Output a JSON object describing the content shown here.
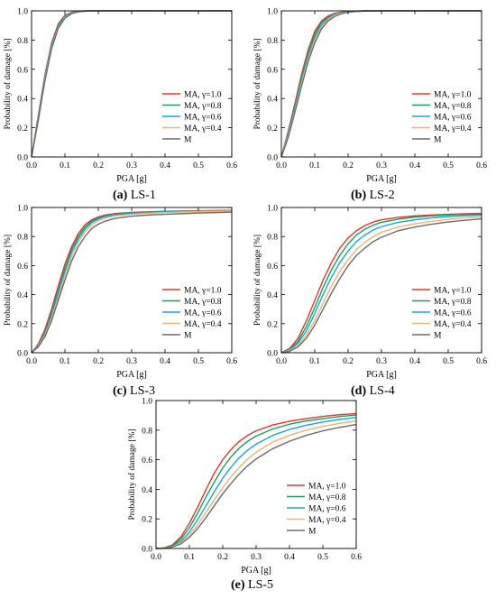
{
  "series_colors": {
    "MA, γ=1.0": "#e3342f",
    "MA, γ=0.8": "#1a9e5a",
    "MA, γ=0.6": "#1aa3d6",
    "MA, γ=0.4": "#f3b173",
    "M": "#6b6b6b"
  },
  "chart_data": [
    {
      "type": "line",
      "caption_letter": "(a)",
      "caption_text": "LS-1",
      "xlabel": "PGA [g]",
      "ylabel": "Probability of damage [%]",
      "xlim": [
        0.0,
        0.6
      ],
      "ylim": [
        0.0,
        1.0
      ],
      "xticks": [
        "0.0",
        "0.1",
        "0.2",
        "0.3",
        "0.4",
        "0.5",
        "0.6"
      ],
      "yticks": [
        "0.0",
        "0.2",
        "0.4",
        "0.6",
        "0.8",
        "1.0"
      ],
      "legend_position": "lower-right",
      "grid": false,
      "x": [
        0,
        0.02,
        0.04,
        0.06,
        0.08,
        0.1,
        0.12,
        0.14,
        0.16,
        0.18,
        0.2,
        0.25,
        0.3,
        0.4,
        0.5,
        0.6
      ],
      "series": [
        {
          "name": "MA, γ=1.0",
          "values": [
            0,
            0.28,
            0.56,
            0.78,
            0.91,
            0.97,
            0.99,
            0.997,
            1,
            1,
            1,
            1,
            1,
            1,
            1,
            1
          ]
        },
        {
          "name": "MA, γ=0.8",
          "values": [
            0,
            0.27,
            0.55,
            0.77,
            0.9,
            0.965,
            0.988,
            0.996,
            0.999,
            1,
            1,
            1,
            1,
            1,
            1,
            1
          ]
        },
        {
          "name": "MA, γ=0.6",
          "values": [
            0,
            0.26,
            0.54,
            0.76,
            0.89,
            0.96,
            0.985,
            0.995,
            0.998,
            1,
            1,
            1,
            1,
            1,
            1,
            1
          ]
        },
        {
          "name": "MA, γ=0.4",
          "values": [
            0,
            0.25,
            0.53,
            0.75,
            0.885,
            0.955,
            0.983,
            0.994,
            0.998,
            1,
            1,
            1,
            1,
            1,
            1,
            1
          ]
        },
        {
          "name": "M",
          "values": [
            0,
            0.25,
            0.52,
            0.74,
            0.88,
            0.95,
            0.98,
            0.993,
            0.997,
            1,
            1,
            1,
            1,
            1,
            1,
            1
          ]
        }
      ]
    },
    {
      "type": "line",
      "caption_letter": "(b)",
      "caption_text": "LS-2",
      "xlabel": "PGA [g]",
      "ylabel": "Probability of damage [%]",
      "xlim": [
        0.0,
        0.6
      ],
      "ylim": [
        0.0,
        1.0
      ],
      "xticks": [
        "0.0",
        "0.1",
        "0.2",
        "0.3",
        "0.4",
        "0.5",
        "0.6"
      ],
      "yticks": [
        "0.0",
        "0.2",
        "0.4",
        "0.6",
        "0.8",
        "1.0"
      ],
      "legend_position": "lower-right",
      "grid": false,
      "x": [
        0,
        0.02,
        0.04,
        0.06,
        0.08,
        0.1,
        0.12,
        0.14,
        0.16,
        0.18,
        0.2,
        0.22,
        0.25,
        0.3,
        0.4,
        0.5,
        0.6
      ],
      "series": [
        {
          "name": "MA, γ=1.0",
          "values": [
            0,
            0.17,
            0.36,
            0.56,
            0.73,
            0.86,
            0.93,
            0.965,
            0.983,
            0.992,
            0.996,
            0.998,
            1,
            1,
            1,
            1,
            1
          ]
        },
        {
          "name": "MA, γ=0.8",
          "values": [
            0,
            0.16,
            0.34,
            0.54,
            0.71,
            0.84,
            0.92,
            0.958,
            0.979,
            0.99,
            0.995,
            0.998,
            1,
            1,
            1,
            1,
            1
          ]
        },
        {
          "name": "MA, γ=0.6",
          "values": [
            0,
            0.15,
            0.33,
            0.52,
            0.69,
            0.82,
            0.905,
            0.95,
            0.975,
            0.988,
            0.994,
            0.997,
            0.999,
            1,
            1,
            1,
            1
          ]
        },
        {
          "name": "MA, γ=0.4",
          "values": [
            0,
            0.14,
            0.31,
            0.5,
            0.67,
            0.8,
            0.89,
            0.94,
            0.97,
            0.985,
            0.992,
            0.996,
            0.999,
            1,
            1,
            1,
            1
          ]
        },
        {
          "name": "M",
          "values": [
            0,
            0.13,
            0.3,
            0.48,
            0.65,
            0.78,
            0.875,
            0.93,
            0.962,
            0.98,
            0.99,
            0.995,
            0.998,
            1,
            1,
            1,
            1
          ]
        }
      ]
    },
    {
      "type": "line",
      "caption_letter": "(c)",
      "caption_text": "LS-3",
      "xlabel": "PGA [g]",
      "ylabel": "Probability of damage [%]",
      "xlim": [
        0.0,
        0.6
      ],
      "ylim": [
        0.0,
        1.0
      ],
      "xticks": [
        "0.0",
        "0.1",
        "0.2",
        "0.3",
        "0.4",
        "0.5",
        "0.6"
      ],
      "yticks": [
        "0.0",
        "0.2",
        "0.4",
        "0.6",
        "0.8",
        "1.0"
      ],
      "legend_position": "lower-right",
      "grid": false,
      "x": [
        0,
        0.02,
        0.04,
        0.06,
        0.08,
        0.1,
        0.12,
        0.14,
        0.16,
        0.18,
        0.2,
        0.22,
        0.25,
        0.3,
        0.35,
        0.4,
        0.5,
        0.6
      ],
      "series": [
        {
          "name": "MA, γ=1.0",
          "values": [
            0,
            0.06,
            0.16,
            0.3,
            0.46,
            0.61,
            0.73,
            0.82,
            0.88,
            0.915,
            0.935,
            0.948,
            0.958,
            0.966,
            0.97,
            0.974,
            0.978,
            0.98
          ]
        },
        {
          "name": "MA, γ=0.8",
          "values": [
            0,
            0.055,
            0.14,
            0.28,
            0.43,
            0.58,
            0.71,
            0.8,
            0.865,
            0.905,
            0.928,
            0.942,
            0.954,
            0.963,
            0.968,
            0.972,
            0.976,
            0.978
          ]
        },
        {
          "name": "MA, γ=0.6",
          "values": [
            0,
            0.05,
            0.13,
            0.26,
            0.41,
            0.56,
            0.69,
            0.78,
            0.85,
            0.895,
            0.92,
            0.937,
            0.95,
            0.96,
            0.966,
            0.97,
            0.975,
            0.978
          ]
        },
        {
          "name": "MA, γ=0.4",
          "values": [
            0,
            0.045,
            0.12,
            0.24,
            0.38,
            0.53,
            0.66,
            0.76,
            0.83,
            0.88,
            0.908,
            0.926,
            0.942,
            0.953,
            0.96,
            0.965,
            0.972,
            0.976
          ]
        },
        {
          "name": "M",
          "values": [
            0,
            0.04,
            0.11,
            0.22,
            0.36,
            0.5,
            0.63,
            0.73,
            0.8,
            0.855,
            0.885,
            0.905,
            0.925,
            0.94,
            0.948,
            0.953,
            0.962,
            0.968
          ]
        }
      ]
    },
    {
      "type": "line",
      "caption_letter": "(d)",
      "caption_text": "LS-4",
      "xlabel": "PGA [g]",
      "ylabel": "Probability of damage [%]",
      "xlim": [
        0.0,
        0.6
      ],
      "ylim": [
        0.0,
        1.0
      ],
      "xticks": [
        "0.0",
        "0.1",
        "0.2",
        "0.3",
        "0.4",
        "0.5",
        "0.6"
      ],
      "yticks": [
        "0.0",
        "0.2",
        "0.4",
        "0.6",
        "0.8",
        "1.0"
      ],
      "legend_position": "lower-right",
      "grid": false,
      "x": [
        0,
        0.025,
        0.05,
        0.075,
        0.1,
        0.125,
        0.15,
        0.175,
        0.2,
        0.225,
        0.25,
        0.275,
        0.3,
        0.35,
        0.4,
        0.45,
        0.5,
        0.55,
        0.6
      ],
      "series": [
        {
          "name": "MA, γ=1.0",
          "values": [
            0,
            0.03,
            0.1,
            0.22,
            0.36,
            0.5,
            0.62,
            0.72,
            0.79,
            0.84,
            0.875,
            0.9,
            0.915,
            0.932,
            0.942,
            0.948,
            0.953,
            0.957,
            0.96
          ]
        },
        {
          "name": "MA, γ=0.8",
          "values": [
            0,
            0.025,
            0.08,
            0.18,
            0.31,
            0.45,
            0.57,
            0.67,
            0.75,
            0.81,
            0.85,
            0.878,
            0.898,
            0.92,
            0.934,
            0.942,
            0.948,
            0.952,
            0.955
          ]
        },
        {
          "name": "MA, γ=0.6",
          "values": [
            0,
            0.02,
            0.065,
            0.15,
            0.27,
            0.4,
            0.52,
            0.62,
            0.7,
            0.765,
            0.81,
            0.845,
            0.868,
            0.898,
            0.915,
            0.928,
            0.937,
            0.943,
            0.948
          ]
        },
        {
          "name": "MA, γ=0.4",
          "values": [
            0,
            0.015,
            0.05,
            0.12,
            0.22,
            0.34,
            0.46,
            0.56,
            0.64,
            0.71,
            0.76,
            0.8,
            0.83,
            0.865,
            0.888,
            0.905,
            0.918,
            0.928,
            0.935
          ]
        },
        {
          "name": "M",
          "values": [
            0,
            0.01,
            0.04,
            0.1,
            0.19,
            0.3,
            0.41,
            0.51,
            0.6,
            0.67,
            0.72,
            0.765,
            0.795,
            0.84,
            0.865,
            0.885,
            0.9,
            0.912,
            0.922
          ]
        }
      ]
    },
    {
      "type": "line",
      "caption_letter": "(e)",
      "caption_text": "LS-5",
      "xlabel": "PGA [g]",
      "ylabel": "Probability of damage [%]",
      "xlim": [
        0.0,
        0.6
      ],
      "ylim": [
        0.0,
        1.0
      ],
      "xticks": [
        "0.0",
        "0.1",
        "0.2",
        "0.3",
        "0.4",
        "0.5",
        "0.6"
      ],
      "yticks": [
        "0.0",
        "0.2",
        "0.4",
        "0.6",
        "0.8",
        "1.0"
      ],
      "legend_position": "lower-right",
      "grid": false,
      "x": [
        0,
        0.025,
        0.05,
        0.075,
        0.1,
        0.125,
        0.15,
        0.175,
        0.2,
        0.225,
        0.25,
        0.275,
        0.3,
        0.35,
        0.4,
        0.45,
        0.5,
        0.55,
        0.6
      ],
      "series": [
        {
          "name": "MA, γ=1.0",
          "values": [
            0,
            0.004,
            0.025,
            0.08,
            0.17,
            0.28,
            0.4,
            0.51,
            0.6,
            0.67,
            0.725,
            0.765,
            0.795,
            0.835,
            0.86,
            0.878,
            0.893,
            0.904,
            0.912
          ]
        },
        {
          "name": "MA, γ=0.8",
          "values": [
            0,
            0.003,
            0.02,
            0.065,
            0.14,
            0.24,
            0.35,
            0.45,
            0.545,
            0.62,
            0.68,
            0.725,
            0.76,
            0.808,
            0.84,
            0.862,
            0.878,
            0.892,
            0.902
          ]
        },
        {
          "name": "MA, γ=0.6",
          "values": [
            0,
            0.002,
            0.015,
            0.05,
            0.11,
            0.195,
            0.29,
            0.385,
            0.475,
            0.55,
            0.615,
            0.665,
            0.705,
            0.765,
            0.805,
            0.833,
            0.855,
            0.872,
            0.885
          ]
        },
        {
          "name": "MA, γ=0.4",
          "values": [
            0,
            0.002,
            0.012,
            0.04,
            0.09,
            0.16,
            0.245,
            0.33,
            0.41,
            0.485,
            0.55,
            0.605,
            0.65,
            0.72,
            0.765,
            0.8,
            0.826,
            0.846,
            0.862
          ]
        },
        {
          "name": "M",
          "values": [
            0,
            0.001,
            0.01,
            0.032,
            0.075,
            0.135,
            0.21,
            0.29,
            0.37,
            0.44,
            0.505,
            0.56,
            0.605,
            0.675,
            0.725,
            0.765,
            0.795,
            0.818,
            0.838
          ]
        }
      ]
    }
  ]
}
